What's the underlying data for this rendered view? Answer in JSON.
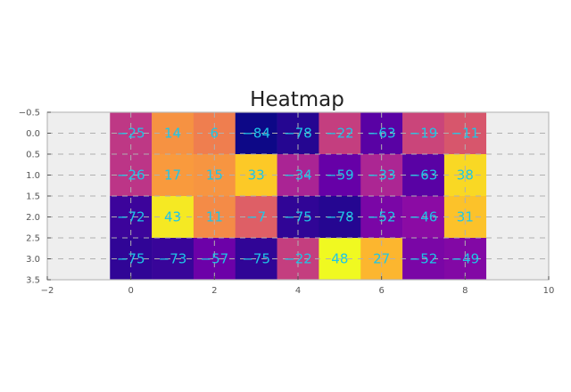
{
  "chart_data": {
    "type": "heatmap",
    "title": "Heatmap",
    "xlabel": "",
    "ylabel": "",
    "xlim": [
      -2,
      10
    ],
    "ylim": [
      3.5,
      -0.5
    ],
    "x_ticks": [
      "−2",
      "0",
      "2",
      "4",
      "6",
      "8",
      "10"
    ],
    "y_ticks": [
      "−0.5",
      "0.0",
      "0.5",
      "1.0",
      "1.5",
      "2.0",
      "2.5",
      "3.0",
      "3.5"
    ],
    "grid": true,
    "colormap": "plasma",
    "vmin": -84,
    "vmax": 48,
    "label_color": "#1ec6e6",
    "values": [
      [
        -25,
        14,
        6,
        -84,
        -78,
        -22,
        -63,
        -19,
        -11
      ],
      [
        -26,
        17,
        15,
        33,
        -34,
        -59,
        -33,
        -63,
        38
      ],
      [
        -72,
        43,
        11,
        -7,
        -75,
        -78,
        -52,
        -46,
        31
      ],
      [
        -75,
        -73,
        -57,
        -75,
        -22,
        48,
        27,
        -52,
        -49
      ]
    ],
    "cell_labels": [
      [
        "−25",
        "14",
        "6",
        "−84",
        "−78",
        "−22",
        "−63",
        "−19",
        "−11"
      ],
      [
        "−26",
        "17",
        "15",
        "33",
        "−34",
        "−59",
        "−33",
        "−63",
        "38"
      ],
      [
        "−72",
        "43",
        "11",
        "−7",
        "−75",
        "−78",
        "−52",
        "−46",
        "31"
      ],
      [
        "−75",
        "−73",
        "−57",
        "−75",
        "−22",
        "48",
        "27",
        "−52",
        "−49"
      ]
    ]
  }
}
